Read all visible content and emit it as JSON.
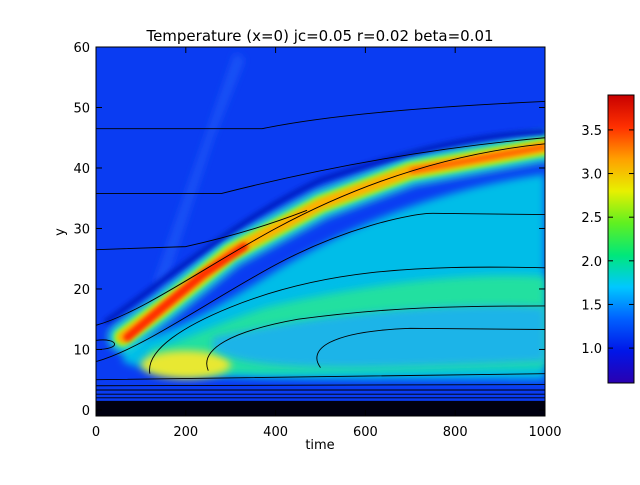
{
  "chart_data": {
    "type": "heatmap",
    "title": "Temperature (x=0) jc=0.05 r=0.02 beta=0.01",
    "xlabel": "time",
    "ylabel": "y",
    "xlim": [
      0,
      1000
    ],
    "ylim": [
      -1,
      60
    ],
    "xticks": [
      "0",
      "200",
      "400",
      "600",
      "800",
      "1000"
    ],
    "yticks": [
      "0",
      "10",
      "20",
      "30",
      "40",
      "50",
      "60"
    ],
    "colorbar": {
      "range": [
        0.6,
        3.9
      ],
      "ticks": [
        "1.0",
        "1.5",
        "2.0",
        "2.5",
        "3.0",
        "3.5"
      ],
      "colormap": [
        "#2a00b0",
        "#0016e8",
        "#0060ff",
        "#00c8ff",
        "#00e87a",
        "#60f020",
        "#e8f000",
        "#ffa000",
        "#ff3000",
        "#c80000"
      ]
    },
    "background_value": 0.9,
    "features": [
      {
        "name": "hot ridge",
        "path": [
          [
            60,
            12
          ],
          [
            150,
            17
          ],
          [
            300,
            26
          ],
          [
            500,
            34
          ],
          [
            700,
            39.5
          ],
          [
            1000,
            43.5
          ]
        ],
        "peak": 3.8
      },
      {
        "name": "warm lower plume",
        "path": [
          [
            60,
            9
          ],
          [
            200,
            9
          ],
          [
            400,
            11
          ],
          [
            700,
            12
          ],
          [
            1000,
            12
          ]
        ],
        "peak": 2.3
      }
    ]
  }
}
